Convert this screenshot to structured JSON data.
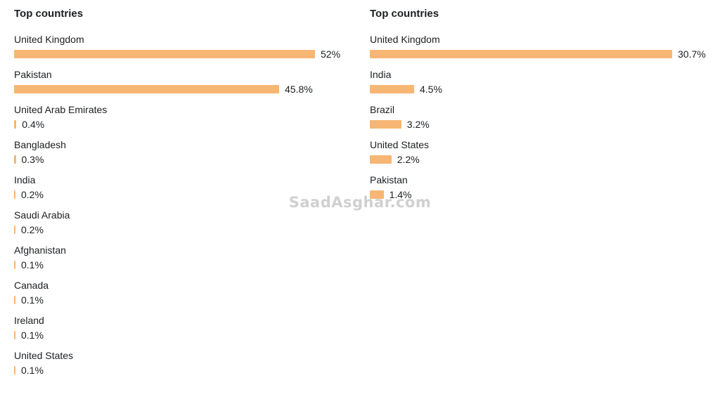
{
  "chart_data": [
    {
      "type": "bar",
      "orientation": "horizontal",
      "title": "Top countries",
      "categories": [
        "United Kingdom",
        "Pakistan",
        "United Arab Emirates",
        "Bangladesh",
        "India",
        "Saudi Arabia",
        "Afghanistan",
        "Canada",
        "Ireland",
        "United States"
      ],
      "values": [
        52,
        45.8,
        0.4,
        0.3,
        0.2,
        0.2,
        0.1,
        0.1,
        0.1,
        0.1
      ],
      "labels": [
        "52%",
        "45.8%",
        "0.4%",
        "0.3%",
        "0.2%",
        "0.2%",
        "0.1%",
        "0.1%",
        "0.1%",
        "0.1%"
      ],
      "xlim": [
        0,
        52
      ],
      "grid": false,
      "bar_color": "#f7b673"
    },
    {
      "type": "bar",
      "orientation": "horizontal",
      "title": "Top countries",
      "categories": [
        "United Kingdom",
        "India",
        "Brazil",
        "United States",
        "Pakistan"
      ],
      "values": [
        30.7,
        4.5,
        3.2,
        2.2,
        1.4
      ],
      "labels": [
        "30.7%",
        "4.5%",
        "3.2%",
        "2.2%",
        "1.4%"
      ],
      "xlim": [
        0,
        30.7
      ],
      "grid": false,
      "bar_color": "#f7b673"
    }
  ],
  "watermark": "SaadAsghar.com"
}
